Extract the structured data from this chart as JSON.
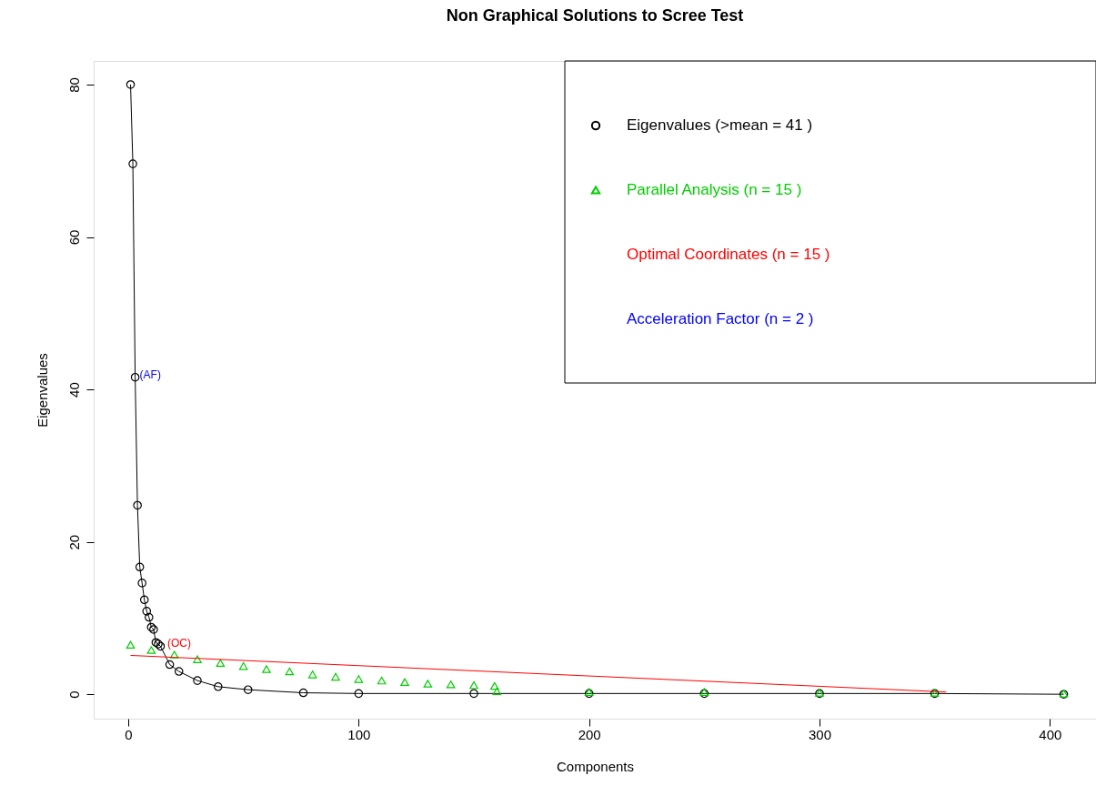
{
  "chart_data": {
    "type": "scatter",
    "title": "Non Graphical Solutions to Scree Test",
    "xlabel": "Components",
    "ylabel": "Eigenvalues",
    "xlim": [
      -15,
      420
    ],
    "ylim": [
      -3.2,
      83.1
    ],
    "xticks": [
      0,
      100,
      200,
      300,
      400
    ],
    "yticks": [
      0,
      20,
      40,
      60,
      80
    ],
    "grid": false,
    "legend": "top right",
    "series": [
      {
        "name": "Eigenvalues (>mean  =  41 )",
        "type": "line",
        "marker": "circle",
        "color": "#000000",
        "x": [
          1,
          2,
          3,
          4,
          5,
          6,
          7,
          8,
          9,
          10,
          11,
          12,
          13,
          14,
          18,
          22,
          30,
          39,
          52,
          76,
          100,
          150,
          200,
          250,
          300,
          350,
          406
        ],
        "values": [
          80,
          69.6,
          41.6,
          24.8,
          16.7,
          14.6,
          12.4,
          10.9,
          10.1,
          8.8,
          8.5,
          6.8,
          6.6,
          6.3,
          3.9,
          3.0,
          1.8,
          1.0,
          0.6,
          0.2,
          0.1,
          0.1,
          0.1,
          0.1,
          0.1,
          0.1,
          0
        ]
      },
      {
        "name": "Parallel Analysis (n =  15 )",
        "marker": "triangle",
        "color": "#00cd00",
        "x": [
          1,
          10,
          20,
          30,
          40,
          50,
          60,
          70,
          80,
          90,
          100,
          110,
          120,
          130,
          140,
          150,
          159,
          160,
          200,
          250,
          300,
          350,
          406
        ],
        "values": [
          6.5,
          5.8,
          5.2,
          4.6,
          4.1,
          3.7,
          3.3,
          3.0,
          2.6,
          2.3,
          2.0,
          1.8,
          1.6,
          1.4,
          1.3,
          1.2,
          1.1,
          0.4,
          0.3,
          0.3,
          0.2,
          0.2,
          0.1
        ]
      },
      {
        "name": "Optimal Coordinates (n =  15 )",
        "type": "line",
        "marker": "none",
        "color": "#ff0000",
        "x": [
          1,
          355
        ],
        "values": [
          5.1,
          0.3
        ]
      }
    ],
    "annotations": [
      {
        "text": "(AF)",
        "x": 3,
        "y": 41.6
      },
      {
        "text": "(OC)",
        "x": 15,
        "y": 6.3
      },
      "Acceleration Factor (n =  2 )"
    ]
  }
}
